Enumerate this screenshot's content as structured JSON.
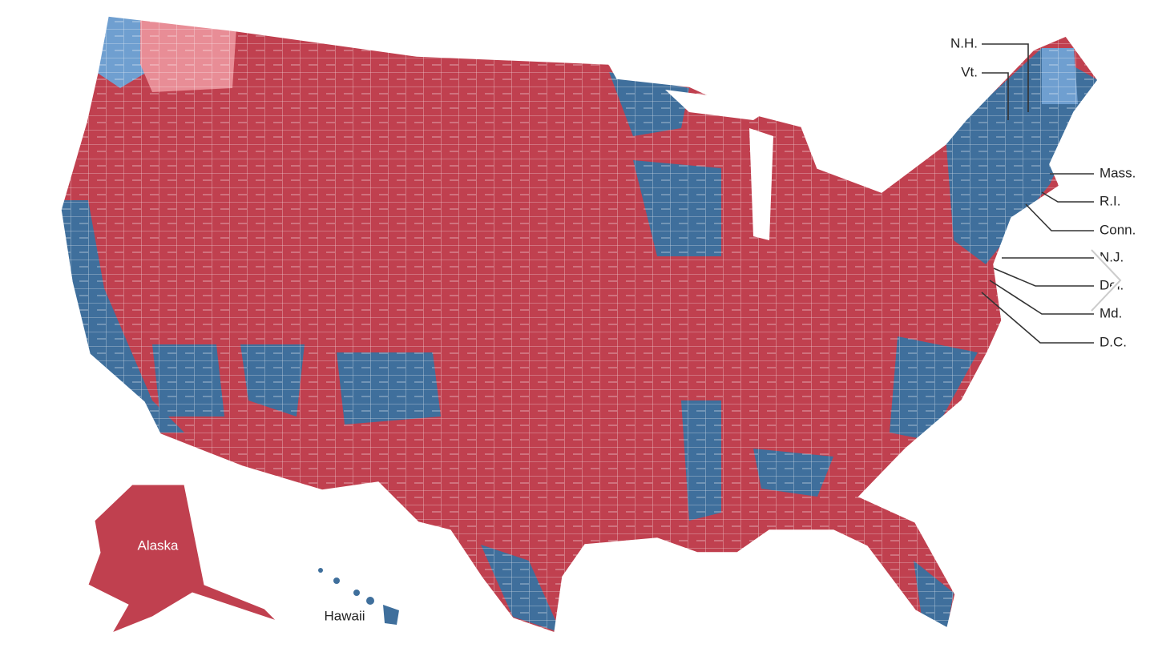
{
  "map": {
    "callouts": [
      "N.H.",
      "Vt.",
      "Mass.",
      "R.I.",
      "Conn.",
      "N.J.",
      "Del.",
      "Md.",
      "D.C."
    ],
    "insets": [
      "Alaska",
      "Hawaii"
    ]
  }
}
